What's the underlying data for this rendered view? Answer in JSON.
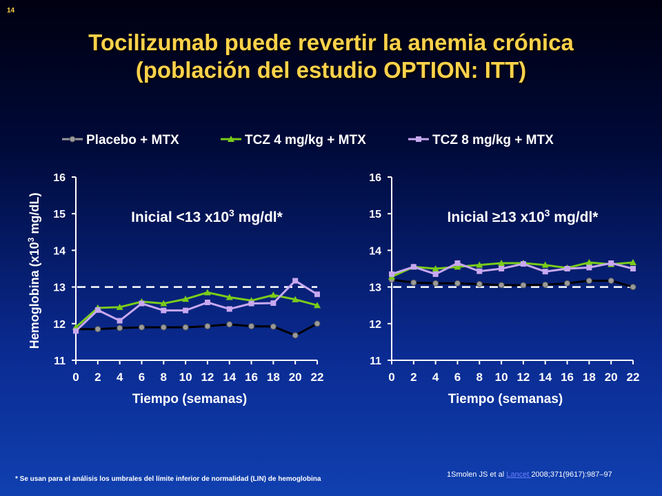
{
  "slide_number": "14",
  "title_line1": "Tocilizumab puede revertir la anemia crónica",
  "title_line2": "(población del estudio OPTION: ITT)",
  "footnote": "* Se usan para el análisis los umbrales del límite inferior de normalidad (LIN) de hemoglobina",
  "reference": {
    "prefix": "1Smolen JS et al ",
    "journal": "Lancet ",
    "suffix": "2008;371(9617):987–97"
  },
  "colors": {
    "placebo": "#9a9a9a",
    "tcz4": "#7acc1a",
    "tcz8": "#c8a8f0"
  },
  "chart_data": [
    {
      "type": "line",
      "title_prefix": "Inicial <13 x10",
      "title_sup": "3",
      "title_suffix": " mg/dl*",
      "ylabel_main": "Hemoglobina (x10",
      "ylabel_sup": "3",
      "ylabel_end": " mg/dL)",
      "xlabel": "Tiempo (semanas)",
      "ylim": [
        11,
        16
      ],
      "yticks": [
        "11",
        "12",
        "13",
        "14",
        "15",
        "16"
      ],
      "xlim": [
        0,
        22
      ],
      "xticks": [
        "0",
        "2",
        "4",
        "6",
        "8",
        "10",
        "12",
        "14",
        "16",
        "18",
        "20",
        "22"
      ],
      "reference_line": 13,
      "x": [
        0,
        2,
        4,
        6,
        8,
        10,
        12,
        14,
        16,
        18,
        20,
        22
      ],
      "series": [
        {
          "name": "Placebo + MTX",
          "marker": "circle",
          "values": [
            11.85,
            11.85,
            11.88,
            11.9,
            11.9,
            11.9,
            11.93,
            11.98,
            11.93,
            11.92,
            11.68,
            12.0
          ]
        },
        {
          "name": "TCZ 4 mg/kg + MTX",
          "marker": "triangle",
          "values": [
            11.9,
            12.43,
            12.45,
            12.6,
            12.55,
            12.67,
            12.85,
            12.72,
            12.63,
            12.78,
            12.66,
            12.5
          ]
        },
        {
          "name": "TCZ 8 mg/kg + MTX",
          "marker": "square",
          "values": [
            11.8,
            12.37,
            12.08,
            12.55,
            12.36,
            12.36,
            12.58,
            12.4,
            12.55,
            12.56,
            13.17,
            12.8
          ]
        }
      ]
    },
    {
      "type": "line",
      "title_prefix": "Inicial ≥13 x10",
      "title_sup": "3",
      "title_suffix": " mg/dl*",
      "xlabel": "Tiempo (semanas)",
      "ylim": [
        11,
        16
      ],
      "yticks": [
        "11",
        "12",
        "13",
        "14",
        "15",
        "16"
      ],
      "xlim": [
        0,
        22
      ],
      "xticks": [
        "0",
        "2",
        "4",
        "6",
        "8",
        "10",
        "12",
        "14",
        "16",
        "18",
        "20",
        "22"
      ],
      "reference_line": 13,
      "x": [
        0,
        2,
        4,
        6,
        8,
        10,
        12,
        14,
        16,
        18,
        20,
        22
      ],
      "series": [
        {
          "name": "Placebo + MTX",
          "marker": "circle",
          "values": [
            13.2,
            13.12,
            13.1,
            13.1,
            13.08,
            13.05,
            13.05,
            13.06,
            13.1,
            13.17,
            13.17,
            13.0
          ]
        },
        {
          "name": "TCZ 4 mg/kg + MTX",
          "marker": "triangle",
          "values": [
            13.28,
            13.55,
            13.5,
            13.55,
            13.6,
            13.65,
            13.65,
            13.6,
            13.52,
            13.67,
            13.62,
            13.67
          ]
        },
        {
          "name": "TCZ 8 mg/kg + MTX",
          "marker": "square",
          "values": [
            13.35,
            13.55,
            13.35,
            13.65,
            13.43,
            13.5,
            13.63,
            13.42,
            13.5,
            13.53,
            13.65,
            13.5
          ]
        }
      ]
    }
  ]
}
